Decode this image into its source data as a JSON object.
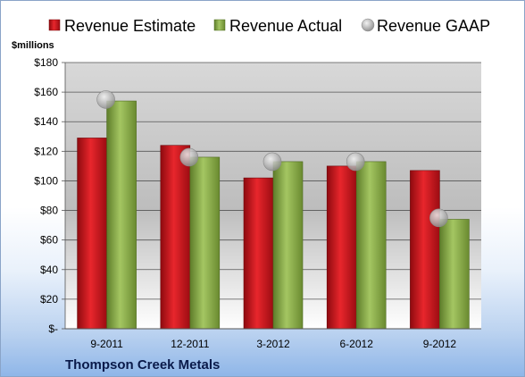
{
  "chart_data": {
    "type": "bar",
    "unit_label": "$millions",
    "caption": "Thompson Creek Metals",
    "categories": [
      "9-2011",
      "12-2011",
      "3-2012",
      "6-2012",
      "9-2012"
    ],
    "series": [
      {
        "name": "Revenue Estimate",
        "kind": "bar",
        "color": "#d4141c",
        "values": [
          129,
          124,
          102,
          110,
          107
        ]
      },
      {
        "name": "Revenue Actual",
        "kind": "bar",
        "color": "#8db548",
        "values": [
          154,
          116,
          113,
          113,
          74
        ]
      },
      {
        "name": "Revenue GAAP",
        "kind": "marker",
        "color": "#b8b8b8",
        "values": [
          155,
          116,
          113,
          113,
          75
        ]
      }
    ],
    "y_ticks": [
      "$-",
      "$20",
      "$40",
      "$60",
      "$80",
      "$100",
      "$120",
      "$140",
      "$160",
      "$180"
    ],
    "ylim": [
      0,
      180
    ],
    "y_step": 20,
    "grid": true,
    "legend_position": "top"
  }
}
